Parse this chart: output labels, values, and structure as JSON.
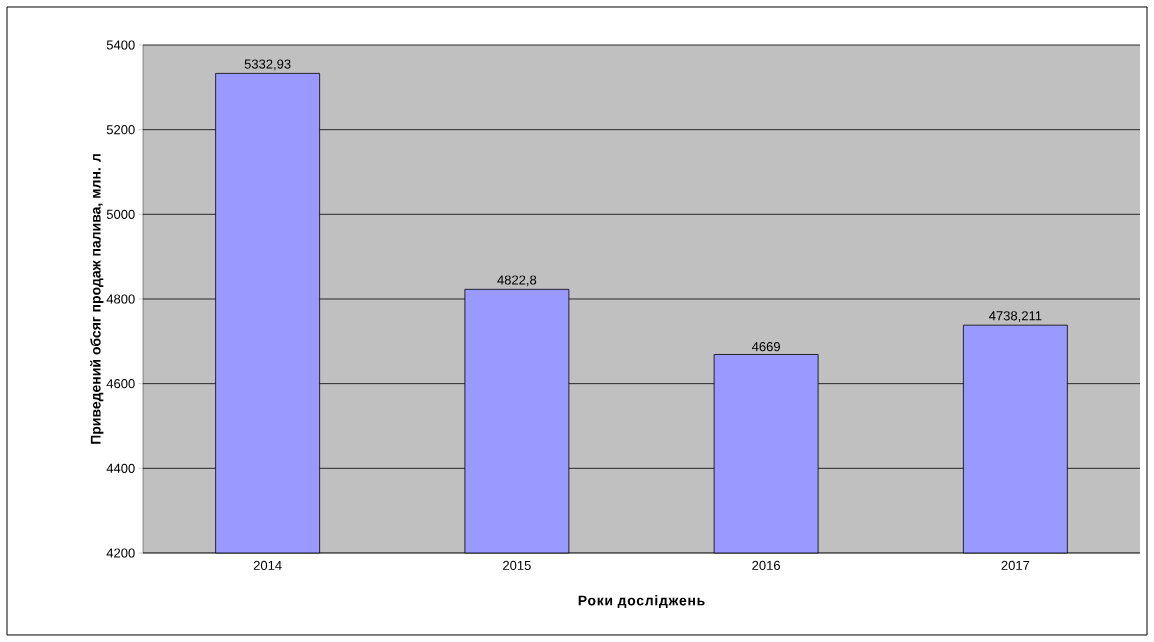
{
  "chart_data": {
    "type": "bar",
    "xlabel": "Роки досліджень",
    "ylabel": "Приведений обсяг продаж палива, млн. л",
    "categories": [
      "2014",
      "2015",
      "2016",
      "2017"
    ],
    "values": [
      5332.93,
      4822.8,
      4669,
      4738.211
    ],
    "value_labels": [
      "5332,93",
      "4822,8",
      "4669",
      "4738,211"
    ],
    "color": "#9999ff",
    "ylim": [
      4200,
      5400
    ],
    "yticks": [
      4200,
      4400,
      4600,
      4800,
      5000,
      5200,
      5400
    ],
    "grid": "y"
  }
}
